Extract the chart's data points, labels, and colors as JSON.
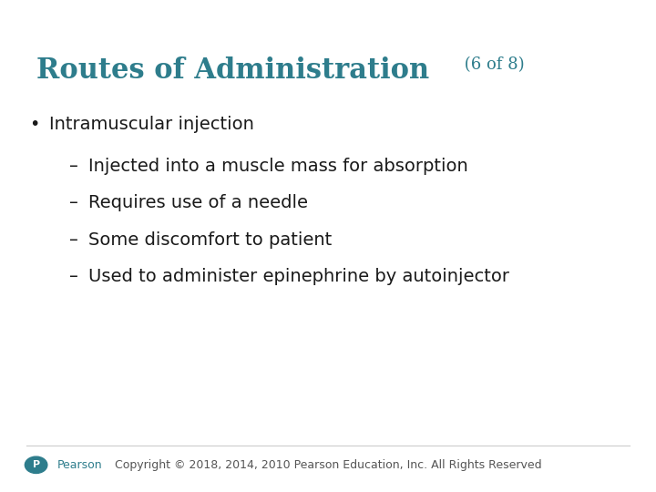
{
  "title_main": "Routes of Administration",
  "title_sub": " (6 of 8)",
  "title_color": "#2E7D8C",
  "title_fontsize": 22,
  "title_sub_fontsize": 13,
  "bullet_text": "Intramuscular injection",
  "bullet_color": "#2E7D8C",
  "sub_bullets": [
    "Injected into a muscle mass for absorption",
    "Requires use of a needle",
    "Some discomfort to patient",
    "Used to administer epinephrine by autoinjector"
  ],
  "text_color": "#1a1a1a",
  "bullet_fontsize": 14,
  "sub_bullet_fontsize": 14,
  "background_color": "#ffffff",
  "footer_text": "Copyright © 2018, 2014, 2010 Pearson Education, Inc. All Rights Reserved",
  "footer_color": "#555555",
  "footer_fontsize": 9,
  "pearson_text": "Pearson",
  "pearson_color": "#2E7D8C"
}
